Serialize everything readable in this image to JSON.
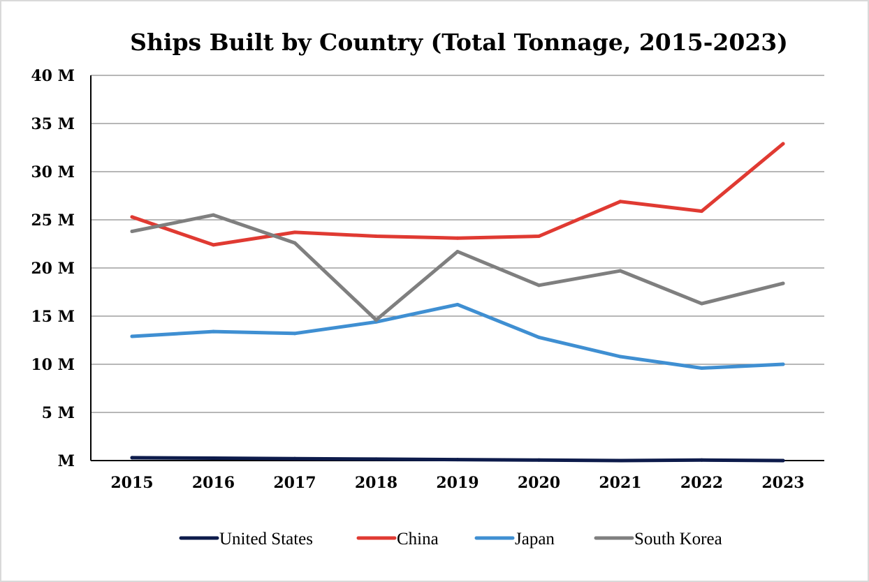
{
  "chart_data": {
    "type": "line",
    "title": "Ships Built by Country (Total Tonnage, 2015-2023)",
    "xlabel": "",
    "ylabel": "",
    "categories": [
      "2015",
      "2016",
      "2017",
      "2018",
      "2019",
      "2020",
      "2021",
      "2022",
      "2023"
    ],
    "ylim": [
      0,
      40
    ],
    "y_ticks": [
      {
        "value": 0,
        "label": "M"
      },
      {
        "value": 5,
        "label": "5 M"
      },
      {
        "value": 10,
        "label": "10 M"
      },
      {
        "value": 15,
        "label": "15 M"
      },
      {
        "value": 20,
        "label": "20 M"
      },
      {
        "value": 25,
        "label": "25 M"
      },
      {
        "value": 30,
        "label": "30 M"
      },
      {
        "value": 35,
        "label": "35 M"
      },
      {
        "value": 40,
        "label": "40 M"
      }
    ],
    "grid": true,
    "legend_position": "bottom",
    "series": [
      {
        "name": "United States",
        "color": "#0d1b4b",
        "values": [
          0.3,
          0.25,
          0.2,
          0.15,
          0.1,
          0.05,
          0.0,
          0.05,
          0.0
        ]
      },
      {
        "name": "China",
        "color": "#e03a32",
        "values": [
          25.3,
          22.4,
          23.7,
          23.3,
          23.1,
          23.3,
          26.9,
          25.9,
          32.9
        ]
      },
      {
        "name": "Japan",
        "color": "#3f8fd2",
        "values": [
          12.9,
          13.4,
          13.2,
          14.4,
          16.2,
          12.8,
          10.8,
          9.6,
          10.0
        ]
      },
      {
        "name": "South Korea",
        "color": "#7f7f7f",
        "values": [
          23.8,
          25.5,
          22.6,
          14.6,
          21.7,
          18.2,
          19.7,
          16.3,
          18.4
        ]
      }
    ]
  }
}
